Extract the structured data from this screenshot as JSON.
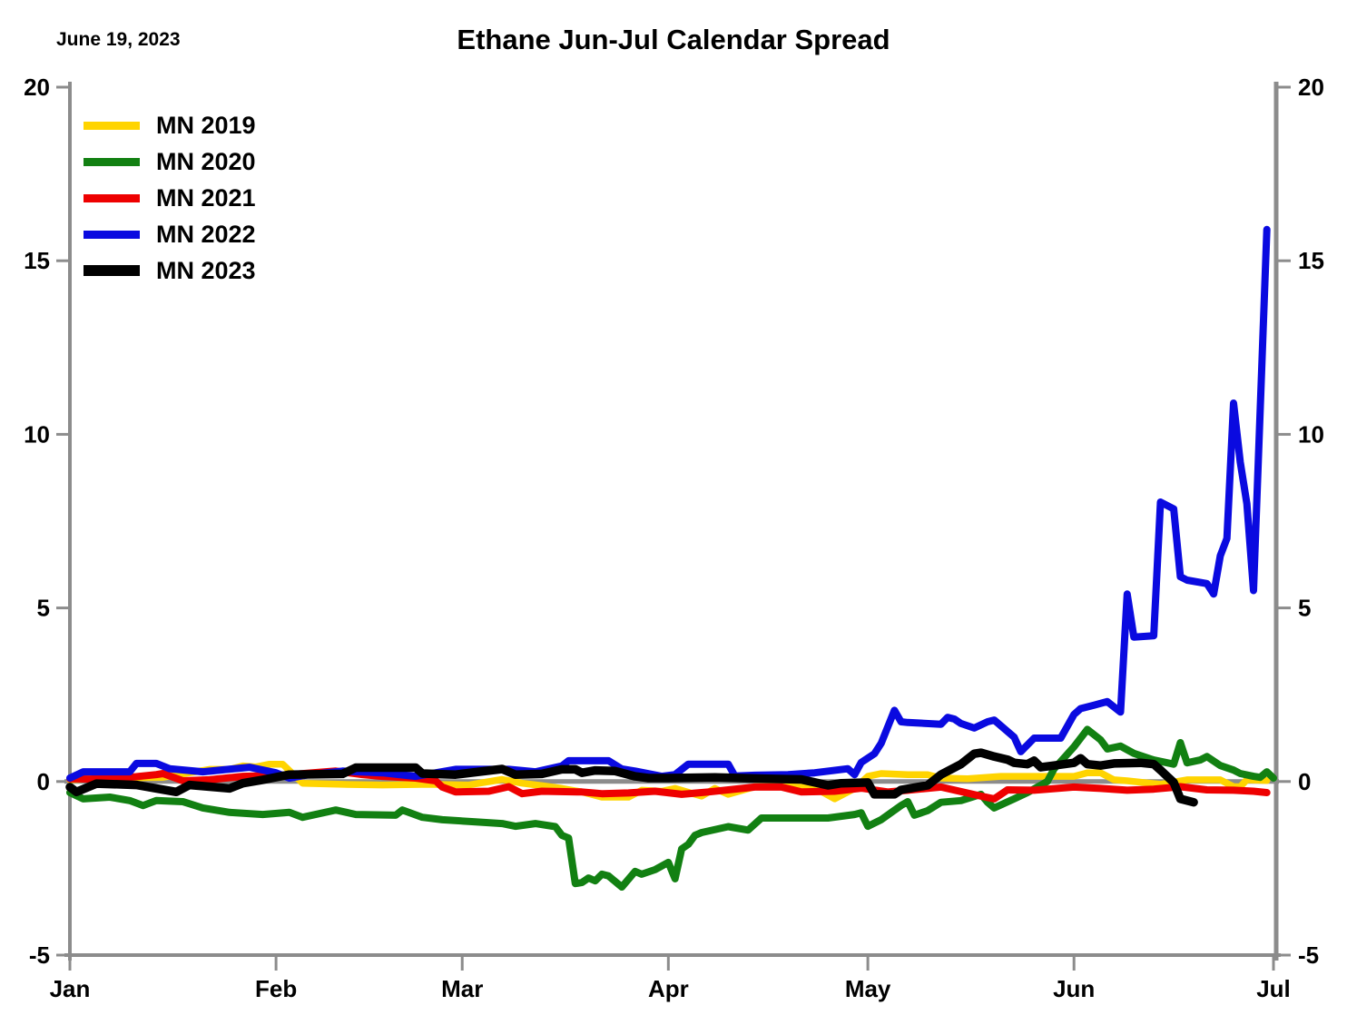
{
  "header": {
    "date_annotation": "June 19, 2023",
    "title": "Ethane Jun-Jul Calendar Spread"
  },
  "chart_data": {
    "type": "line",
    "title": "Ethane Jun-Jul Calendar Spread",
    "date_annotation": "June 19, 2023",
    "x_axis": {
      "unit": "day_of_year_from_jan1",
      "tick_labels": [
        "Jan",
        "Feb",
        "Mar",
        "Apr",
        "May",
        "Jun",
        "Jul"
      ],
      "tick_days": [
        0,
        31,
        59,
        90,
        120,
        151,
        181
      ],
      "range_days": [
        0,
        181
      ]
    },
    "y_axis": {
      "min": -5,
      "max": 20,
      "tick_values": [
        20,
        15,
        10,
        5,
        0,
        -5
      ],
      "tick_labels": [
        "20",
        "15",
        "10",
        "5",
        "0",
        "-5"
      ],
      "mirrored_right_axis": true
    },
    "grid": "zero_line_only",
    "zero_line_color": "#8c8c8c",
    "axis_color": "#8c8c8c",
    "legend_position": "top-left-inside",
    "series": [
      {
        "name": "MN 2019",
        "color": "#ffd400",
        "line_width": 7.5,
        "points": [
          [
            0,
            0.05
          ],
          [
            6,
            0.1
          ],
          [
            14,
            0.12
          ],
          [
            21,
            0.35
          ],
          [
            24,
            0.35
          ],
          [
            26,
            0.45
          ],
          [
            28,
            0.42
          ],
          [
            30,
            0.5
          ],
          [
            32,
            0.5
          ],
          [
            35,
            -0.05
          ],
          [
            41,
            -0.08
          ],
          [
            47,
            -0.1
          ],
          [
            54,
            -0.08
          ],
          [
            60,
            -0.1
          ],
          [
            65,
            0.06
          ],
          [
            68,
            -0.05
          ],
          [
            71,
            -0.12
          ],
          [
            74,
            -0.2
          ],
          [
            77,
            -0.3
          ],
          [
            80,
            -0.45
          ],
          [
            84,
            -0.45
          ],
          [
            86,
            -0.25
          ],
          [
            89,
            -0.28
          ],
          [
            91,
            -0.2
          ],
          [
            95,
            -0.42
          ],
          [
            97,
            -0.2
          ],
          [
            99,
            -0.37
          ],
          [
            103,
            -0.15
          ],
          [
            108,
            -0.15
          ],
          [
            112,
            -0.18
          ],
          [
            115,
            -0.5
          ],
          [
            118,
            -0.2
          ],
          [
            120,
            0.15
          ],
          [
            122,
            0.23
          ],
          [
            126,
            0.2
          ],
          [
            129,
            0.2
          ],
          [
            131,
            0.1
          ],
          [
            135,
            0.08
          ],
          [
            140,
            0.15
          ],
          [
            151,
            0.15
          ],
          [
            153,
            0.25
          ],
          [
            155,
            0.25
          ],
          [
            157,
            0.05
          ],
          [
            159,
            0.02
          ],
          [
            164,
            -0.08
          ],
          [
            168,
            0.05
          ],
          [
            173,
            0.05
          ],
          [
            175,
            -0.15
          ],
          [
            176,
            -0.15
          ],
          [
            177,
            0.05
          ],
          [
            180,
            0.03
          ]
        ]
      },
      {
        "name": "MN 2020",
        "color": "#128012",
        "line_width": 8,
        "points": [
          [
            0,
            -0.32
          ],
          [
            2,
            -0.5
          ],
          [
            6,
            -0.45
          ],
          [
            9,
            -0.55
          ],
          [
            11,
            -0.69
          ],
          [
            13,
            -0.55
          ],
          [
            17,
            -0.58
          ],
          [
            20,
            -0.76
          ],
          [
            24,
            -0.89
          ],
          [
            29,
            -0.95
          ],
          [
            33,
            -0.89
          ],
          [
            35,
            -1.03
          ],
          [
            40,
            -0.82
          ],
          [
            43,
            -0.95
          ],
          [
            49,
            -0.97
          ],
          [
            50,
            -0.82
          ],
          [
            53,
            -1.03
          ],
          [
            56,
            -1.1
          ],
          [
            61,
            -1.16
          ],
          [
            65,
            -1.21
          ],
          [
            67,
            -1.29
          ],
          [
            70,
            -1.21
          ],
          [
            73,
            -1.3
          ],
          [
            74,
            -1.55
          ],
          [
            75,
            -1.63
          ],
          [
            76,
            -2.94
          ],
          [
            77,
            -2.91
          ],
          [
            78,
            -2.78
          ],
          [
            79,
            -2.86
          ],
          [
            80,
            -2.67
          ],
          [
            81,
            -2.72
          ],
          [
            83,
            -3.04
          ],
          [
            85,
            -2.59
          ],
          [
            86,
            -2.67
          ],
          [
            88,
            -2.54
          ],
          [
            90,
            -2.33
          ],
          [
            91,
            -2.8
          ],
          [
            92,
            -1.94
          ],
          [
            93,
            -1.81
          ],
          [
            94,
            -1.55
          ],
          [
            95,
            -1.47
          ],
          [
            99,
            -1.3
          ],
          [
            102,
            -1.4
          ],
          [
            104,
            -1.05
          ],
          [
            114,
            -1.05
          ],
          [
            118,
            -0.95
          ],
          [
            119,
            -0.9
          ],
          [
            120,
            -1.29
          ],
          [
            122,
            -1.1
          ],
          [
            125,
            -0.69
          ],
          [
            126,
            -0.58
          ],
          [
            127,
            -0.97
          ],
          [
            129,
            -0.84
          ],
          [
            131,
            -0.6
          ],
          [
            134,
            -0.55
          ],
          [
            137,
            -0.37
          ],
          [
            138,
            -0.6
          ],
          [
            139,
            -0.76
          ],
          [
            142,
            -0.5
          ],
          [
            144,
            -0.32
          ],
          [
            147,
            0.0
          ],
          [
            148,
            0.36
          ],
          [
            151,
            1.0
          ],
          [
            153,
            1.5
          ],
          [
            155,
            1.2
          ],
          [
            156,
            0.94
          ],
          [
            158,
            1.02
          ],
          [
            160,
            0.81
          ],
          [
            163,
            0.62
          ],
          [
            166,
            0.5
          ],
          [
            167,
            1.12
          ],
          [
            168,
            0.54
          ],
          [
            170,
            0.62
          ],
          [
            171,
            0.72
          ],
          [
            173,
            0.46
          ],
          [
            175,
            0.33
          ],
          [
            176,
            0.23
          ],
          [
            178,
            0.15
          ],
          [
            179,
            0.12
          ],
          [
            180,
            0.28
          ],
          [
            181,
            0.1
          ]
        ]
      },
      {
        "name": "MN 2021",
        "color": "#ee0000",
        "line_width": 8,
        "points": [
          [
            0,
            0.08
          ],
          [
            3,
            0.07
          ],
          [
            9,
            0.12
          ],
          [
            13,
            0.2
          ],
          [
            14,
            0.23
          ],
          [
            17,
            0.02
          ],
          [
            21,
            0.05
          ],
          [
            26,
            0.15
          ],
          [
            32,
            0.18
          ],
          [
            40,
            0.3
          ],
          [
            44,
            0.2
          ],
          [
            47,
            0.15
          ],
          [
            52,
            0.1
          ],
          [
            55,
            0.02
          ],
          [
            56,
            -0.16
          ],
          [
            58,
            -0.3
          ],
          [
            63,
            -0.28
          ],
          [
            66,
            -0.15
          ],
          [
            68,
            -0.35
          ],
          [
            71,
            -0.28
          ],
          [
            77,
            -0.3
          ],
          [
            80,
            -0.35
          ],
          [
            84,
            -0.33
          ],
          [
            88,
            -0.28
          ],
          [
            92,
            -0.37
          ],
          [
            96,
            -0.3
          ],
          [
            103,
            -0.16
          ],
          [
            107,
            -0.16
          ],
          [
            110,
            -0.3
          ],
          [
            115,
            -0.28
          ],
          [
            119,
            -0.19
          ],
          [
            123,
            -0.3
          ],
          [
            126,
            -0.25
          ],
          [
            131,
            -0.16
          ],
          [
            137,
            -0.42
          ],
          [
            139,
            -0.5
          ],
          [
            141,
            -0.24
          ],
          [
            145,
            -0.25
          ],
          [
            151,
            -0.16
          ],
          [
            155,
            -0.2
          ],
          [
            159,
            -0.25
          ],
          [
            163,
            -0.22
          ],
          [
            167,
            -0.15
          ],
          [
            171,
            -0.24
          ],
          [
            175,
            -0.25
          ],
          [
            178,
            -0.28
          ],
          [
            180,
            -0.32
          ]
        ]
      },
      {
        "name": "MN 2022",
        "color": "#0a0ae0",
        "line_width": 8,
        "points": [
          [
            0,
            0.1
          ],
          [
            2,
            0.28
          ],
          [
            9,
            0.28
          ],
          [
            10,
            0.52
          ],
          [
            13,
            0.52
          ],
          [
            15,
            0.37
          ],
          [
            20,
            0.28
          ],
          [
            27,
            0.41
          ],
          [
            31,
            0.25
          ],
          [
            33,
            0.1
          ],
          [
            36,
            0.2
          ],
          [
            41,
            0.3
          ],
          [
            47,
            0.25
          ],
          [
            52,
            0.15
          ],
          [
            58,
            0.35
          ],
          [
            66,
            0.35
          ],
          [
            70,
            0.28
          ],
          [
            74,
            0.45
          ],
          [
            75,
            0.6
          ],
          [
            81,
            0.6
          ],
          [
            83,
            0.36
          ],
          [
            85,
            0.3
          ],
          [
            89,
            0.15
          ],
          [
            91,
            0.2
          ],
          [
            93,
            0.5
          ],
          [
            99,
            0.5
          ],
          [
            100,
            0.16
          ],
          [
            103,
            0.18
          ],
          [
            108,
            0.2
          ],
          [
            112,
            0.25
          ],
          [
            117,
            0.37
          ],
          [
            118,
            0.2
          ],
          [
            119,
            0.55
          ],
          [
            121,
            0.8
          ],
          [
            122,
            1.1
          ],
          [
            124,
            2.05
          ],
          [
            125,
            1.72
          ],
          [
            126,
            1.7
          ],
          [
            131,
            1.65
          ],
          [
            132,
            1.85
          ],
          [
            133,
            1.8
          ],
          [
            134,
            1.67
          ],
          [
            136,
            1.54
          ],
          [
            138,
            1.72
          ],
          [
            139,
            1.77
          ],
          [
            142,
            1.28
          ],
          [
            143,
            0.86
          ],
          [
            145,
            1.25
          ],
          [
            149,
            1.25
          ],
          [
            151,
            1.93
          ],
          [
            152,
            2.1
          ],
          [
            154,
            2.2
          ],
          [
            156,
            2.3
          ],
          [
            158,
            2.0
          ],
          [
            159,
            5.4
          ],
          [
            160,
            4.16
          ],
          [
            163,
            4.2
          ],
          [
            164,
            8.05
          ],
          [
            166,
            7.85
          ],
          [
            167,
            5.9
          ],
          [
            168,
            5.8
          ],
          [
            171,
            5.7
          ],
          [
            172,
            5.4
          ],
          [
            173,
            6.5
          ],
          [
            174,
            7.0
          ],
          [
            175,
            10.9
          ],
          [
            176,
            9.2
          ],
          [
            177,
            8.0
          ],
          [
            178,
            5.5
          ],
          [
            180,
            15.9
          ]
        ]
      },
      {
        "name": "MN 2023",
        "color": "#000000",
        "line_width": 9.5,
        "points": [
          [
            0,
            -0.16
          ],
          [
            1,
            -0.3
          ],
          [
            4,
            -0.06
          ],
          [
            10,
            -0.1
          ],
          [
            16,
            -0.3
          ],
          [
            18,
            -0.1
          ],
          [
            24,
            -0.2
          ],
          [
            26,
            -0.05
          ],
          [
            29,
            0.05
          ],
          [
            33,
            0.2
          ],
          [
            41,
            0.22
          ],
          [
            43,
            0.4
          ],
          [
            52,
            0.4
          ],
          [
            53,
            0.23
          ],
          [
            58,
            0.2
          ],
          [
            65,
            0.36
          ],
          [
            67,
            0.2
          ],
          [
            71,
            0.22
          ],
          [
            74,
            0.35
          ],
          [
            76,
            0.35
          ],
          [
            77,
            0.25
          ],
          [
            79,
            0.32
          ],
          [
            82,
            0.3
          ],
          [
            85,
            0.15
          ],
          [
            87,
            0.1
          ],
          [
            90,
            0.1
          ],
          [
            97,
            0.12
          ],
          [
            105,
            0.08
          ],
          [
            110,
            0.06
          ],
          [
            114,
            -0.11
          ],
          [
            116,
            -0.05
          ],
          [
            120,
            -0.03
          ],
          [
            121,
            -0.37
          ],
          [
            124,
            -0.37
          ],
          [
            125,
            -0.24
          ],
          [
            129,
            -0.11
          ],
          [
            131,
            0.2
          ],
          [
            134,
            0.5
          ],
          [
            136,
            0.8
          ],
          [
            137,
            0.83
          ],
          [
            139,
            0.72
          ],
          [
            141,
            0.63
          ],
          [
            142,
            0.54
          ],
          [
            144,
            0.5
          ],
          [
            145,
            0.6
          ],
          [
            146,
            0.41
          ],
          [
            148,
            0.46
          ],
          [
            151,
            0.54
          ],
          [
            152,
            0.67
          ],
          [
            153,
            0.5
          ],
          [
            155,
            0.46
          ],
          [
            157,
            0.52
          ],
          [
            161,
            0.54
          ],
          [
            163,
            0.5
          ],
          [
            164,
            0.33
          ],
          [
            165,
            0.15
          ],
          [
            166,
            -0.03
          ],
          [
            167,
            -0.5
          ],
          [
            168,
            -0.55
          ],
          [
            169,
            -0.6
          ]
        ]
      }
    ]
  }
}
